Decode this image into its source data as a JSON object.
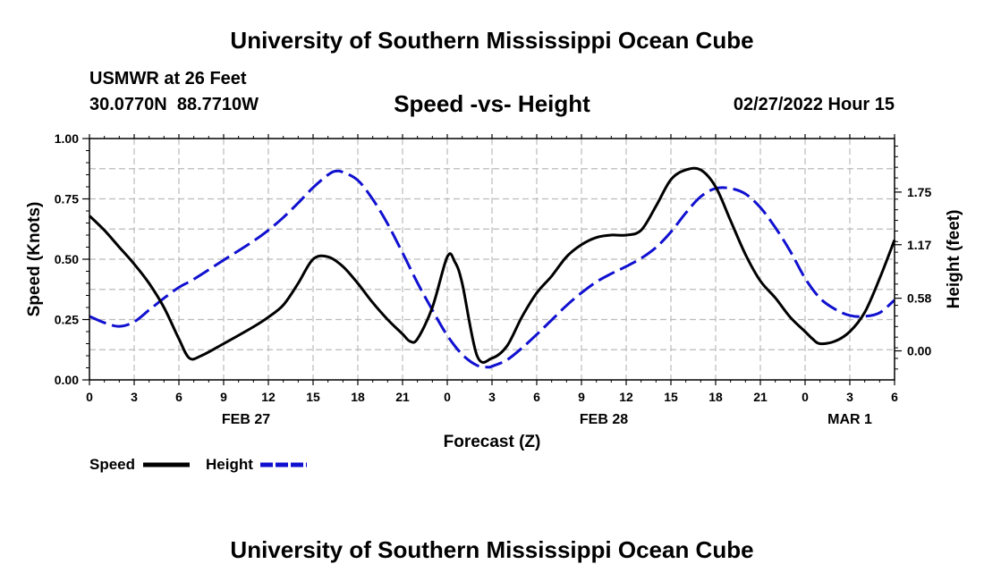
{
  "header": {
    "title": "University of Southern Mississippi Ocean Cube",
    "station": "USMWR at 26 Feet",
    "coords": "30.0770N  88.7710W",
    "subtitle": "Speed -vs- Height",
    "run": "02/27/2022 Hour 15"
  },
  "footer": {
    "title": "University of Southern Mississippi Ocean Cube"
  },
  "colors": {
    "speed": "#000000",
    "height": "#1010d0",
    "grid": "#bbbbbb"
  },
  "chart_data": {
    "type": "line",
    "title": "Speed -vs- Height",
    "xlabel": "Forecast (Z)",
    "ylabel": "Speed (Knots)",
    "y2label": "Height (feet)",
    "xlim": [
      0,
      54
    ],
    "ylim": [
      0,
      1
    ],
    "y2lim": [
      -0.32,
      2.34
    ],
    "x_ticks": [
      0,
      3,
      6,
      9,
      12,
      15,
      18,
      21,
      24,
      27,
      30,
      33,
      36,
      39,
      42,
      45,
      48,
      51,
      54
    ],
    "x_tick_labels": [
      "0",
      "3",
      "6",
      "9",
      "12",
      "15",
      "18",
      "21",
      "0",
      "3",
      "6",
      "9",
      "12",
      "15",
      "18",
      "21",
      "0",
      "3",
      "6"
    ],
    "y_ticks": [
      0,
      0.25,
      0.5,
      0.75,
      1.0
    ],
    "y_tick_labels": [
      "0.00",
      "0.25",
      "0.50",
      "0.75",
      "1.00"
    ],
    "y2_ticks": [
      0,
      0.58,
      1.17,
      1.75
    ],
    "y2_tick_labels": [
      "0.00",
      "0.58",
      "1.17",
      "1.75"
    ],
    "date_labels": [
      {
        "x": 10.5,
        "label": "FEB 27"
      },
      {
        "x": 34.5,
        "label": "FEB 28"
      },
      {
        "x": 51,
        "label": "MAR 1"
      }
    ],
    "legend": {
      "speed_label": "Speed",
      "height_label": "Height",
      "placement": "bottom-left"
    },
    "series": [
      {
        "name": "Speed",
        "axis": "left",
        "style": "solid",
        "x": [
          0,
          1,
          2,
          3,
          4,
          5,
          6,
          6.7,
          7.5,
          9,
          11,
          12,
          13,
          14,
          15,
          16,
          17,
          18,
          19,
          20,
          21,
          21.5,
          22,
          23,
          24,
          24.5,
          25,
          26,
          27,
          28,
          29,
          30,
          31,
          32,
          33,
          34,
          35,
          36,
          37,
          38,
          39,
          40,
          41,
          42,
          43,
          44,
          45,
          46,
          47,
          48,
          48.5,
          49,
          50,
          51,
          52,
          53,
          54
        ],
        "values": [
          0.68,
          0.62,
          0.55,
          0.48,
          0.4,
          0.3,
          0.17,
          0.09,
          0.1,
          0.15,
          0.22,
          0.26,
          0.31,
          0.4,
          0.5,
          0.51,
          0.47,
          0.4,
          0.32,
          0.25,
          0.19,
          0.16,
          0.17,
          0.3,
          0.51,
          0.49,
          0.4,
          0.1,
          0.09,
          0.14,
          0.26,
          0.36,
          0.43,
          0.51,
          0.56,
          0.59,
          0.6,
          0.6,
          0.62,
          0.72,
          0.83,
          0.87,
          0.87,
          0.8,
          0.66,
          0.52,
          0.41,
          0.34,
          0.26,
          0.2,
          0.17,
          0.15,
          0.16,
          0.2,
          0.28,
          0.42,
          0.58
        ]
      },
      {
        "name": "Height",
        "axis": "right",
        "style": "dashed",
        "x": [
          0,
          1,
          2,
          3,
          4,
          5,
          6,
          7,
          9,
          11,
          12,
          13,
          14,
          15,
          16,
          16.5,
          17,
          18,
          19,
          20,
          21,
          22,
          23,
          24,
          25,
          26,
          26.8,
          27,
          28,
          29,
          30,
          31,
          32,
          33,
          34,
          35,
          36,
          37,
          38,
          39,
          40,
          41,
          42,
          43,
          44,
          45,
          46,
          47,
          48,
          49,
          50,
          51,
          52,
          53,
          54
        ],
        "values": [
          0.38,
          0.31,
          0.27,
          0.32,
          0.45,
          0.58,
          0.7,
          0.79,
          1.0,
          1.21,
          1.33,
          1.47,
          1.63,
          1.8,
          1.94,
          1.98,
          1.97,
          1.88,
          1.67,
          1.4,
          1.08,
          0.75,
          0.45,
          0.17,
          -0.04,
          -0.16,
          -0.18,
          -0.17,
          -0.1,
          0.03,
          0.18,
          0.34,
          0.5,
          0.64,
          0.76,
          0.85,
          0.93,
          1.02,
          1.14,
          1.31,
          1.52,
          1.7,
          1.79,
          1.79,
          1.73,
          1.58,
          1.36,
          1.1,
          0.8,
          0.58,
          0.46,
          0.39,
          0.38,
          0.42,
          0.56
        ]
      }
    ]
  }
}
